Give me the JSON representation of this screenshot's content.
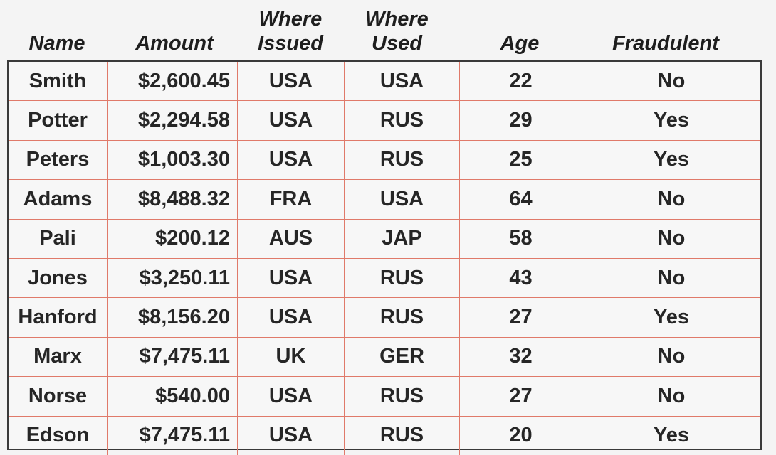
{
  "table": {
    "headers": {
      "name": "Name",
      "amount": "Amount",
      "issued_line1": "Where",
      "issued_line2": "Issued",
      "used_line1": "Where",
      "used_line2": "Used",
      "age": "Age",
      "fraudulent": "Fraudulent"
    },
    "rows": [
      {
        "name": "Smith",
        "amount": "$2,600.45",
        "issued": "USA",
        "used": "USA",
        "age": "22",
        "fraudulent": "No"
      },
      {
        "name": "Potter",
        "amount": "$2,294.58",
        "issued": "USA",
        "used": "RUS",
        "age": "29",
        "fraudulent": "Yes"
      },
      {
        "name": "Peters",
        "amount": "$1,003.30",
        "issued": "USA",
        "used": "RUS",
        "age": "25",
        "fraudulent": "Yes"
      },
      {
        "name": "Adams",
        "amount": "$8,488.32",
        "issued": "FRA",
        "used": "USA",
        "age": "64",
        "fraudulent": "No"
      },
      {
        "name": "Pali",
        "amount": "$200.12",
        "issued": "AUS",
        "used": "JAP",
        "age": "58",
        "fraudulent": "No"
      },
      {
        "name": "Jones",
        "amount": "$3,250.11",
        "issued": "USA",
        "used": "RUS",
        "age": "43",
        "fraudulent": "No"
      },
      {
        "name": "Hanford",
        "amount": "$8,156.20",
        "issued": "USA",
        "used": "RUS",
        "age": "27",
        "fraudulent": "Yes"
      },
      {
        "name": "Marx",
        "amount": "$7,475.11",
        "issued": "UK",
        "used": "GER",
        "age": "32",
        "fraudulent": "No"
      },
      {
        "name": "Norse",
        "amount": "$540.00",
        "issued": "USA",
        "used": "RUS",
        "age": "27",
        "fraudulent": "No"
      },
      {
        "name": "Edson",
        "amount": "$7,475.11",
        "issued": "USA",
        "used": "RUS",
        "age": "20",
        "fraudulent": "Yes"
      }
    ]
  }
}
